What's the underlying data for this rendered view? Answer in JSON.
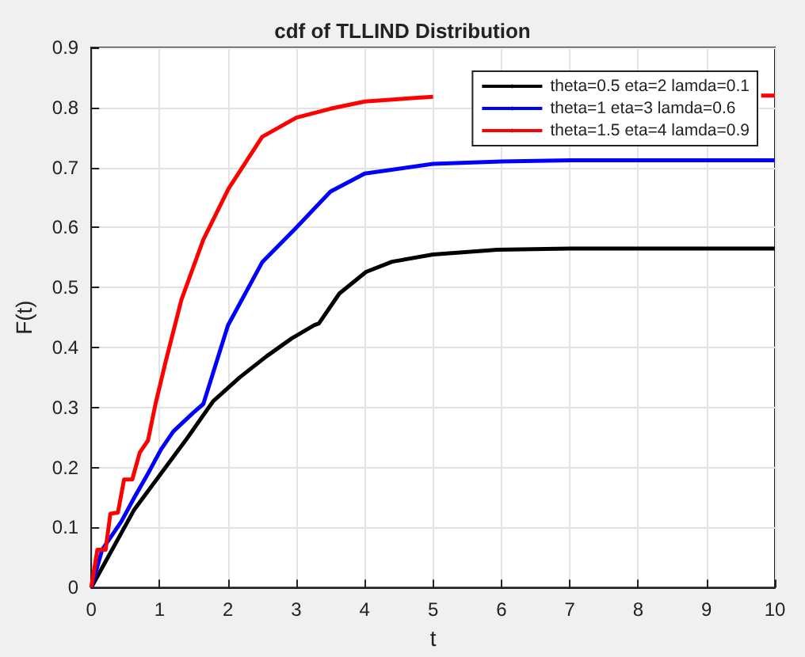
{
  "chart_data": {
    "type": "line",
    "title": "cdf of TLLIND Distribution",
    "xlabel": "t",
    "ylabel": "F(t)",
    "xlim": [
      0,
      10
    ],
    "xticks": [
      0,
      1,
      2,
      3,
      4,
      5,
      6,
      7,
      8,
      9,
      10
    ],
    "ylim": [
      0,
      0.9
    ],
    "yticks": [
      0,
      0.1,
      0.2,
      0.3,
      0.4,
      0.5,
      0.6,
      0.7,
      0.8,
      0.9
    ],
    "grid": true,
    "legend": "top right",
    "marker": "none",
    "line_style": "solid",
    "series": [
      {
        "name": "theta=0.5 eta=2 lamda=0.1",
        "color": "#000000",
        "x": [
          0,
          0.63,
          1.02,
          1.41,
          1.78,
          2.17,
          2.56,
          2.93,
          3.26,
          3.33,
          3.63,
          4.02,
          4.4,
          5,
          5.94,
          7,
          8,
          9,
          10
        ],
        "values": [
          0,
          0.13,
          0.19,
          0.25,
          0.31,
          0.35,
          0.385,
          0.415,
          0.437,
          0.44,
          0.49,
          0.526,
          0.543,
          0.555,
          0.563,
          0.565,
          0.565,
          0.565,
          0.565
        ]
      },
      {
        "name": "theta=1 eta=3 lamda=0.6",
        "color": "#0000ff",
        "x": [
          0,
          0.16,
          0.44,
          0.63,
          0.83,
          1.02,
          1.2,
          1.48,
          1.64,
          2,
          2.5,
          3,
          3.5,
          4,
          5,
          6,
          7,
          8,
          9,
          10
        ],
        "values": [
          0,
          0.063,
          0.11,
          0.15,
          0.19,
          0.23,
          0.26,
          0.29,
          0.306,
          0.437,
          0.542,
          0.6,
          0.66,
          0.69,
          0.706,
          0.71,
          0.712,
          0.712,
          0.712,
          0.712
        ]
      },
      {
        "name": "theta=1.5 eta=4 lamda=0.9",
        "color": "#ff0000",
        "x": [
          0,
          0.09,
          0.21,
          0.28,
          0.39,
          0.48,
          0.6,
          0.71,
          0.83,
          0.94,
          1.09,
          1.32,
          1.64,
          2.01,
          2.5,
          3,
          3.5,
          4,
          5,
          6,
          7,
          8,
          9,
          9.8,
          10
        ],
        "values": [
          0,
          0.063,
          0.063,
          0.123,
          0.125,
          0.18,
          0.18,
          0.225,
          0.245,
          0.306,
          0.377,
          0.48,
          0.58,
          0.665,
          0.751,
          0.783,
          0.798,
          0.81,
          0.818,
          null,
          null,
          null,
          null,
          0.82,
          0.82
        ]
      }
    ]
  }
}
